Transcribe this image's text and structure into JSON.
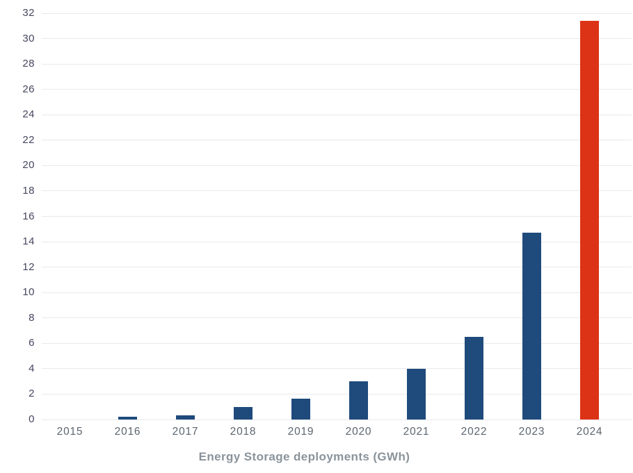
{
  "chart_data": {
    "type": "bar",
    "title": "Energy Storage deployments (GWh)",
    "categories": [
      "2015",
      "2016",
      "2017",
      "2018",
      "2019",
      "2020",
      "2021",
      "2022",
      "2023",
      "2024"
    ],
    "values": [
      0,
      0.2,
      0.35,
      1.0,
      1.65,
      3.0,
      4.0,
      6.5,
      14.7,
      31.4
    ],
    "bar_colors": [
      "#1f4a7c",
      "#1f4a7c",
      "#1f4a7c",
      "#1f4a7c",
      "#1f4a7c",
      "#1f4a7c",
      "#1f4a7c",
      "#1f4a7c",
      "#1f4a7c",
      "#dc3317"
    ],
    "xlabel": "",
    "ylabel": "",
    "ylim": [
      0,
      32
    ],
    "ytick_step": 2,
    "grid": true,
    "legend": "none",
    "style": {
      "default_bar_color": "#1f4a7c",
      "highlight_bar_color": "#dc3317",
      "grid_color": "#e9e9ec",
      "ytick_color": "#46465f",
      "xtick_color": "#5b656e",
      "title_color": "#8a939b",
      "background": "#ffffff"
    }
  }
}
